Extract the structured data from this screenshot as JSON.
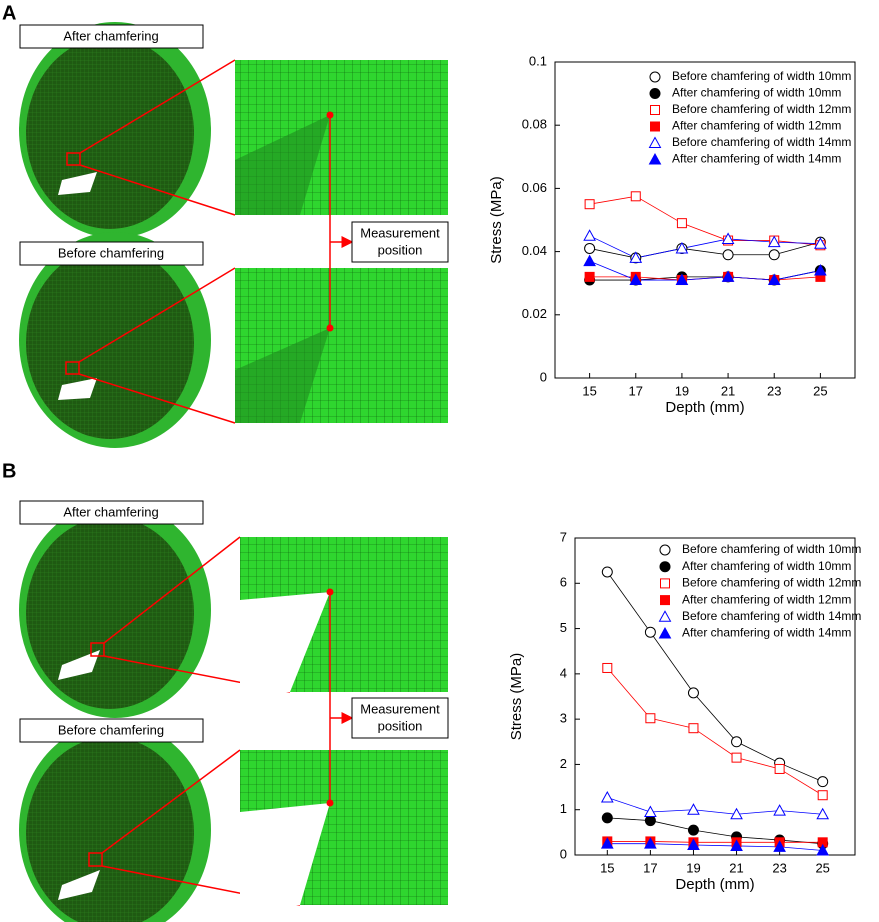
{
  "panels": [
    "A",
    "B"
  ],
  "labels": {
    "after": "After chamfering",
    "before": "Before chamfering",
    "measure_line1": "Measurement",
    "measure_line2": "position"
  },
  "chart_data": [
    {
      "type": "line",
      "xlabel": "Depth (mm)",
      "ylabel": "Stress (MPa)",
      "x": [
        15,
        17,
        19,
        21,
        23,
        25
      ],
      "xlim": [
        13.5,
        26.5
      ],
      "xticks": [
        15,
        17,
        19,
        21,
        23,
        25
      ],
      "ylim": [
        0,
        0.1
      ],
      "yticks": [
        0,
        0.02,
        0.04,
        0.06,
        0.08,
        0.1
      ],
      "legend": "upper right",
      "series": [
        {
          "name": "Before chamfering of width 10mm",
          "color": "#000000",
          "marker": "circle",
          "filled": false,
          "values": [
            0.041,
            0.038,
            0.041,
            0.039,
            0.039,
            0.043
          ]
        },
        {
          "name": "After chamfering of width 10mm",
          "color": "#000000",
          "marker": "circle",
          "filled": true,
          "values": [
            0.031,
            0.031,
            0.032,
            0.032,
            0.031,
            0.034
          ]
        },
        {
          "name": "Before chamfering of width 12mm",
          "color": "#ff0000",
          "marker": "square",
          "filled": false,
          "values": [
            0.055,
            0.0575,
            0.049,
            0.0435,
            0.0435,
            0.042
          ]
        },
        {
          "name": "After chamfering of width 12mm",
          "color": "#ff0000",
          "marker": "square",
          "filled": true,
          "values": [
            0.032,
            0.032,
            0.031,
            0.032,
            0.031,
            0.032
          ]
        },
        {
          "name": "Before chamfering of width 14mm",
          "color": "#0000ff",
          "marker": "triangle",
          "filled": false,
          "values": [
            0.045,
            0.038,
            0.041,
            0.044,
            0.043,
            0.0425
          ]
        },
        {
          "name": "After chamfering of width 14mm",
          "color": "#0000ff",
          "marker": "triangle",
          "filled": true,
          "values": [
            0.037,
            0.031,
            0.031,
            0.032,
            0.031,
            0.034
          ]
        }
      ]
    },
    {
      "type": "line",
      "xlabel": "Depth (mm)",
      "ylabel": "Stress (MPa)",
      "x": [
        15,
        17,
        19,
        21,
        23,
        25
      ],
      "xlim": [
        13.5,
        26.5
      ],
      "xticks": [
        15,
        17,
        19,
        21,
        23,
        25
      ],
      "ylim": [
        0,
        7
      ],
      "yticks": [
        0,
        1,
        2,
        3,
        4,
        5,
        6,
        7
      ],
      "legend": "upper right",
      "series": [
        {
          "name": "Before chamfering of width 10mm",
          "color": "#000000",
          "marker": "circle",
          "filled": false,
          "values": [
            6.25,
            4.92,
            3.58,
            2.5,
            2.03,
            1.62
          ]
        },
        {
          "name": "After chamfering of width 10mm",
          "color": "#000000",
          "marker": "circle",
          "filled": true,
          "values": [
            0.82,
            0.76,
            0.55,
            0.4,
            0.33,
            0.25
          ]
        },
        {
          "name": "Before chamfering of width 12mm",
          "color": "#ff0000",
          "marker": "square",
          "filled": false,
          "values": [
            4.13,
            3.02,
            2.8,
            2.15,
            1.9,
            1.32
          ]
        },
        {
          "name": "After chamfering of width 12mm",
          "color": "#ff0000",
          "marker": "square",
          "filled": true,
          "values": [
            0.3,
            0.3,
            0.28,
            0.28,
            0.28,
            0.28
          ]
        },
        {
          "name": "Before chamfering of width 14mm",
          "color": "#0000ff",
          "marker": "triangle",
          "filled": false,
          "values": [
            1.27,
            0.95,
            1.0,
            0.9,
            0.98,
            0.9
          ]
        },
        {
          "name": "After chamfering of width 14mm",
          "color": "#0000ff",
          "marker": "triangle",
          "filled": true,
          "values": [
            0.25,
            0.25,
            0.22,
            0.2,
            0.18,
            0.1
          ]
        }
      ]
    }
  ]
}
